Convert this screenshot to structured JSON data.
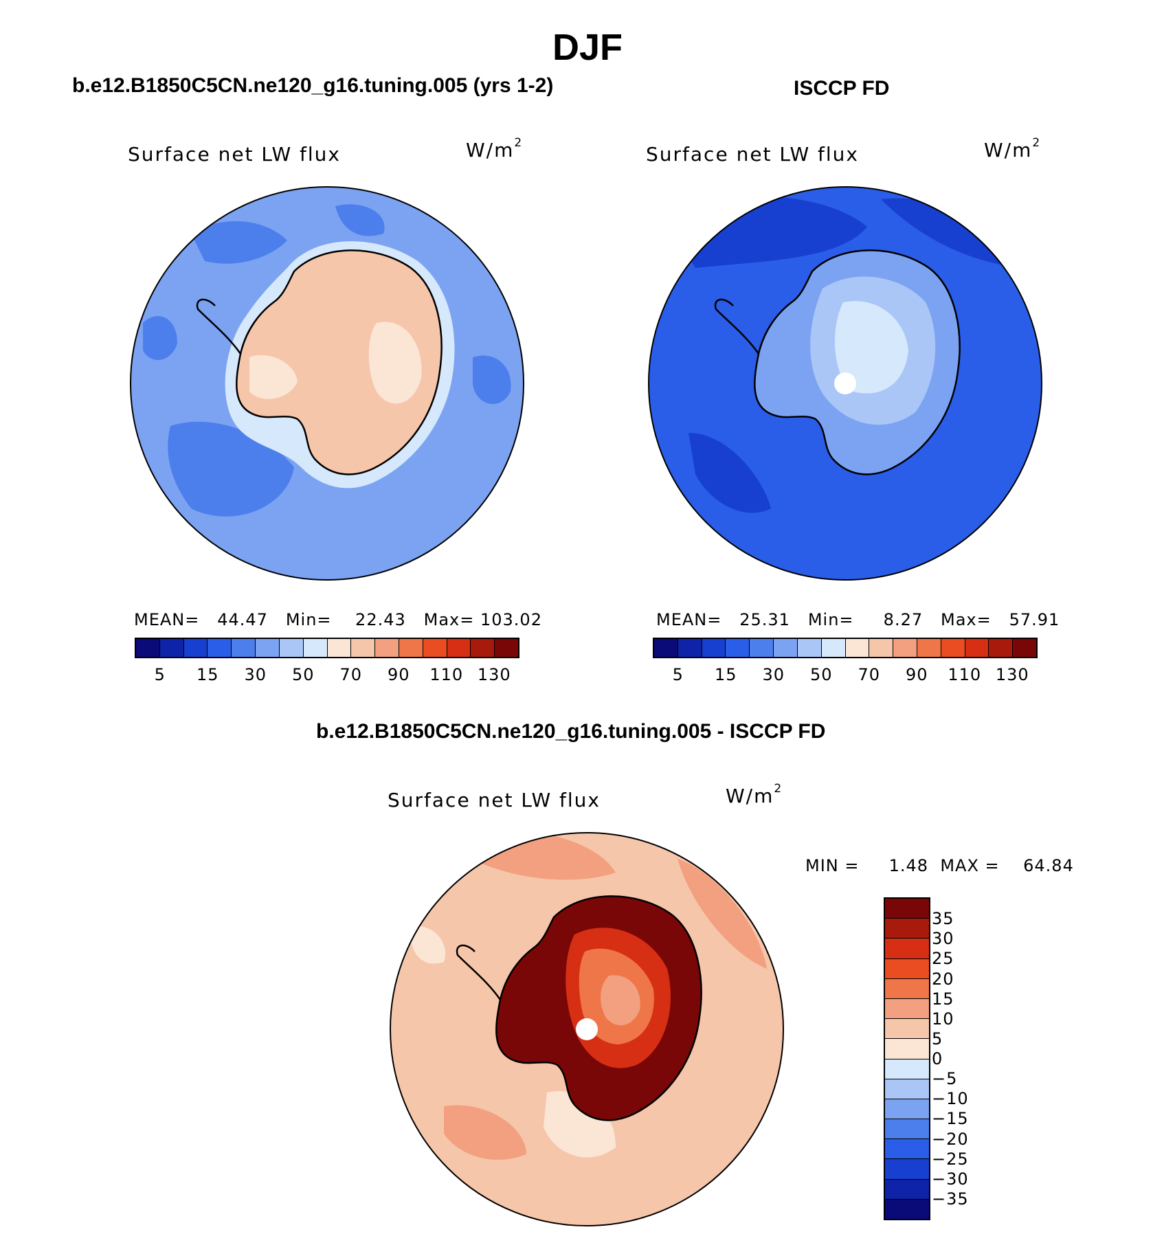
{
  "figure": {
    "title": "DJF"
  },
  "panels": {
    "model": {
      "title": "b.e12.B1850C5CN.ne120_g16.tuning.005 (yrs 1-2)",
      "variable": "Surface net LW flux",
      "units_base": "W/m",
      "units_exp": "2",
      "stats": "MEAN=   44.47   Min=    22.43   Max= 103.02",
      "colorbar_ticks": [
        "5",
        "15",
        "30",
        "50",
        "70",
        "90",
        "110",
        "130"
      ]
    },
    "obs": {
      "title": "ISCCP FD",
      "variable": "Surface net LW flux",
      "units_base": "W/m",
      "units_exp": "2",
      "stats": "MEAN=   25.31   Min=     8.27   Max=   57.91",
      "colorbar_ticks": [
        "5",
        "15",
        "30",
        "50",
        "70",
        "90",
        "110",
        "130"
      ]
    },
    "diff": {
      "title": "b.e12.B1850C5CN.ne120_g16.tuning.005 - ISCCP FD",
      "variable": "Surface net LW flux",
      "units_base": "W/m",
      "units_exp": "2",
      "stats": "MIN =     1.48  MAX =    64.84",
      "colorbar_ticks": [
        "35",
        "30",
        "25",
        "20",
        "15",
        "10",
        "5",
        "0",
        "−5",
        "−10",
        "−15",
        "−20",
        "−25",
        "−30",
        "−35"
      ]
    }
  },
  "colors": {
    "abs_scale": [
      "#0a0a78",
      "#0f23a8",
      "#1740d0",
      "#2a5ee8",
      "#4d7fec",
      "#7ca3f2",
      "#aac6f7",
      "#d6e8fb",
      "#fbe6d6",
      "#f6c6ab",
      "#f2a07f",
      "#ef7648",
      "#ea4d21",
      "#d62f14",
      "#a81a0c",
      "#7a0707"
    ],
    "diff_scale": [
      "#7a0707",
      "#a81a0c",
      "#d62f14",
      "#ea4d21",
      "#ef7648",
      "#f2a07f",
      "#f6c6ab",
      "#fbe6d6",
      "#d6e8fb",
      "#aac6f7",
      "#7ca3f2",
      "#4d7fec",
      "#2a5ee8",
      "#1740d0",
      "#0f23a8",
      "#0a0a78"
    ],
    "map": {
      "model_ocean": "#7ca3f2",
      "model_ocean_dark": "#4d7fec",
      "model_land": "#f6c6ab",
      "model_land_light": "#fbe6d6",
      "model_coast_halo": "#d6e8fb",
      "obs_ocean": "#2a5ee8",
      "obs_ocean_dark": "#1740d0",
      "obs_land_mid": "#7ca3f2",
      "obs_land_light": "#aac6f7",
      "obs_land_center": "#d6e8fb",
      "diff_ocean": "#f6c6ab",
      "diff_ocean_mid": "#f2a07f",
      "diff_ocean_light": "#fbe6d6",
      "diff_land_outer": "#7a0707",
      "diff_land_mid": "#d62f14",
      "diff_land_inner": "#ef7648",
      "diff_land_center": "#f2a07f"
    }
  }
}
